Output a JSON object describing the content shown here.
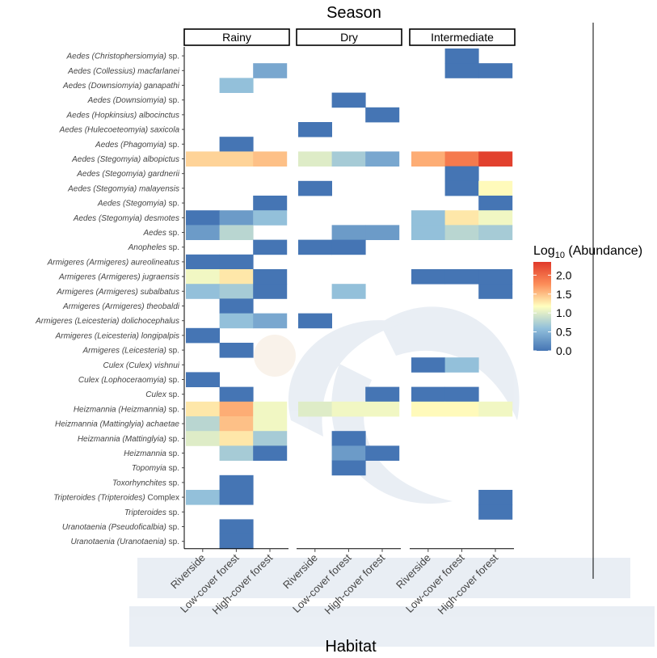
{
  "chart_data": {
    "type": "heatmap",
    "title": "Season",
    "xlabel": "Habitat",
    "legend": {
      "title_main": "Log",
      "title_sub": "10",
      "title_rest": " (Abundance)",
      "ticks": [
        "0.0",
        "0.5",
        "1.0",
        "1.5",
        "2.0"
      ],
      "tick_values": [
        0,
        0.5,
        1.0,
        1.5,
        2.0
      ],
      "range": [
        0,
        2.35
      ],
      "placement": "right",
      "color_stops": [
        "#4575b4",
        "#91bfdb",
        "#ffffbf",
        "#fc8d59",
        "#e03a2a"
      ]
    },
    "facets": [
      "Rainy",
      "Dry",
      "Intermediate"
    ],
    "habitats": [
      "Riverside",
      "Low-cover forest",
      "High-cover forest"
    ],
    "species": [
      {
        "genus": "Aedes",
        "subgenus": "(Christophersiomyia)",
        "epithet": "sp."
      },
      {
        "genus": "Aedes",
        "subgenus": "(Collessius)",
        "epithet": "macfarlanei"
      },
      {
        "genus": "Aedes",
        "subgenus": "(Downsiomyia)",
        "epithet": "ganapathi"
      },
      {
        "genus": "Aedes",
        "subgenus": "(Downsiomyia)",
        "epithet": "sp."
      },
      {
        "genus": "Aedes",
        "subgenus": "(Hopkinsius)",
        "epithet": "albocinctus"
      },
      {
        "genus": "Aedes",
        "subgenus": "(Hulecoeteomyia)",
        "epithet": "saxicola"
      },
      {
        "genus": "Aedes",
        "subgenus": "(Phagomyia)",
        "epithet": "sp."
      },
      {
        "genus": "Aedes",
        "subgenus": "(Stegomyia)",
        "epithet": "albopictus"
      },
      {
        "genus": "Aedes",
        "subgenus": "(Stegomyia)",
        "epithet": "gardnerii"
      },
      {
        "genus": "Aedes",
        "subgenus": "(Stegomyia)",
        "epithet": "malayensis"
      },
      {
        "genus": "Aedes",
        "subgenus": "(Stegomyia)",
        "epithet": "sp."
      },
      {
        "genus": "Aedes",
        "subgenus": "(Stegomyia)",
        "epithet": "desmotes"
      },
      {
        "genus": "Aedes",
        "subgenus": "",
        "epithet": "sp."
      },
      {
        "genus": "Anopheles",
        "subgenus": "",
        "epithet": "sp."
      },
      {
        "genus": "Armigeres",
        "subgenus": "(Armigeres)",
        "epithet": "aureolineatus"
      },
      {
        "genus": "Armigeres",
        "subgenus": "(Armigeres)",
        "epithet": "jugraensis"
      },
      {
        "genus": "Armigeres",
        "subgenus": "(Armigeres)",
        "epithet": "subalbatus"
      },
      {
        "genus": "Armigeres",
        "subgenus": "(Armigeres)",
        "epithet": "theobaldi"
      },
      {
        "genus": "Armigeres",
        "subgenus": "(Leicesteria)",
        "epithet": "dolichocephalus"
      },
      {
        "genus": "Armigeres",
        "subgenus": "(Leicesteria)",
        "epithet": "longipalpis"
      },
      {
        "genus": "Armigeres",
        "subgenus": "(Leicesteria)",
        "epithet": "sp."
      },
      {
        "genus": "Culex",
        "subgenus": "(Culex)",
        "epithet": "vishnui"
      },
      {
        "genus": "Culex",
        "subgenus": "(Lophoceraomyia)",
        "epithet": "sp."
      },
      {
        "genus": "Culex",
        "subgenus": "",
        "epithet": "sp."
      },
      {
        "genus": "Heizmannia",
        "subgenus": "(Heizmannia)",
        "epithet": "sp."
      },
      {
        "genus": "Heizmannia",
        "subgenus": "(Mattinglyia)",
        "epithet": "achaetae"
      },
      {
        "genus": "Heizmannia",
        "subgenus": "(Mattinglyia)",
        "epithet": "sp."
      },
      {
        "genus": "Heizmannia",
        "subgenus": "",
        "epithet": "sp."
      },
      {
        "genus": "Topomyia",
        "subgenus": "",
        "epithet": "sp."
      },
      {
        "genus": "Toxorhynchites",
        "subgenus": "",
        "epithet": "sp."
      },
      {
        "genus": "Tripteroides",
        "subgenus": "(Tripteroides)",
        "epithet": "Complex"
      },
      {
        "genus": "Tripteroides",
        "subgenus": "",
        "epithet": "sp."
      },
      {
        "genus": "Uranotaenia",
        "subgenus": "(Pseudoficalbia)",
        "epithet": "sp."
      },
      {
        "genus": "Uranotaenia",
        "subgenus": "(Uranotaenia)",
        "epithet": "sp."
      }
    ],
    "values": {
      "Rainy": [
        [
          null,
          null,
          null
        ],
        [
          null,
          null,
          0.4
        ],
        [
          null,
          0.6,
          null
        ],
        [
          null,
          null,
          null
        ],
        [
          null,
          null,
          null
        ],
        [
          null,
          null,
          null
        ],
        [
          null,
          0.0,
          null
        ],
        [
          1.4,
          1.4,
          1.5
        ],
        [
          null,
          null,
          null
        ],
        [
          null,
          null,
          null
        ],
        [
          null,
          null,
          0.0
        ],
        [
          0.0,
          0.3,
          0.6
        ],
        [
          0.3,
          0.8,
          null
        ],
        [
          null,
          null,
          0.0
        ],
        [
          0.0,
          0.0,
          null
        ],
        [
          1.1,
          1.3,
          0.0
        ],
        [
          0.6,
          0.7,
          0.0
        ],
        [
          null,
          0.0,
          null
        ],
        [
          null,
          0.6,
          0.4
        ],
        [
          0.0,
          null,
          null
        ],
        [
          null,
          0.0,
          null
        ],
        [
          null,
          null,
          null
        ],
        [
          0.0,
          null,
          null
        ],
        [
          null,
          0.0,
          null
        ],
        [
          1.3,
          1.6,
          1.1
        ],
        [
          0.8,
          1.5,
          1.1
        ],
        [
          1.0,
          1.3,
          0.7
        ],
        [
          null,
          0.7,
          0.0
        ],
        [
          null,
          null,
          null
        ],
        [
          null,
          0.0,
          null
        ],
        [
          0.6,
          0.0,
          null
        ],
        [
          null,
          null,
          null
        ],
        [
          null,
          0.0,
          null
        ],
        [
          null,
          0.0,
          null
        ]
      ],
      "Dry": [
        [
          null,
          null,
          null
        ],
        [
          null,
          null,
          null
        ],
        [
          null,
          null,
          null
        ],
        [
          null,
          0.0,
          null
        ],
        [
          null,
          null,
          0.0
        ],
        [
          0.0,
          null,
          null
        ],
        [
          null,
          null,
          null
        ],
        [
          1.0,
          0.7,
          0.4
        ],
        [
          null,
          null,
          null
        ],
        [
          0.0,
          null,
          null
        ],
        [
          null,
          null,
          null
        ],
        [
          null,
          null,
          null
        ],
        [
          null,
          0.3,
          0.3
        ],
        [
          0.0,
          0.0,
          null
        ],
        [
          null,
          null,
          null
        ],
        [
          null,
          null,
          null
        ],
        [
          null,
          0.6,
          null
        ],
        [
          null,
          null,
          null
        ],
        [
          0.0,
          null,
          null
        ],
        [
          null,
          null,
          null
        ],
        [
          null,
          null,
          null
        ],
        [
          null,
          null,
          null
        ],
        [
          null,
          null,
          null
        ],
        [
          null,
          null,
          0.0
        ],
        [
          1.0,
          1.1,
          1.1
        ],
        [
          null,
          null,
          null
        ],
        [
          null,
          0.0,
          null
        ],
        [
          null,
          0.3,
          0.0
        ],
        [
          null,
          0.0,
          null
        ],
        [
          null,
          null,
          null
        ],
        [
          null,
          null,
          null
        ],
        [
          null,
          null,
          null
        ],
        [
          null,
          null,
          null
        ],
        [
          null,
          null,
          null
        ]
      ],
      "Intermediate": [
        [
          null,
          0.0,
          null
        ],
        [
          null,
          0.0,
          0.0
        ],
        [
          null,
          null,
          null
        ],
        [
          null,
          null,
          null
        ],
        [
          null,
          null,
          null
        ],
        [
          null,
          null,
          null
        ],
        [
          null,
          null,
          null
        ],
        [
          1.6,
          1.9,
          2.3
        ],
        [
          null,
          0.0,
          null
        ],
        [
          null,
          0.0,
          1.2
        ],
        [
          null,
          null,
          0.0
        ],
        [
          0.6,
          1.3,
          1.1
        ],
        [
          0.6,
          0.8,
          0.7
        ],
        [
          null,
          null,
          null
        ],
        [
          null,
          null,
          null
        ],
        [
          0.0,
          0.0,
          0.0
        ],
        [
          null,
          null,
          0.0
        ],
        [
          null,
          null,
          null
        ],
        [
          null,
          null,
          null
        ],
        [
          null,
          null,
          null
        ],
        [
          null,
          null,
          null
        ],
        [
          0.0,
          0.6,
          null
        ],
        [
          null,
          null,
          null
        ],
        [
          0.0,
          0.0,
          null
        ],
        [
          1.2,
          1.2,
          1.1
        ],
        [
          null,
          null,
          null
        ],
        [
          null,
          null,
          null
        ],
        [
          null,
          null,
          null
        ],
        [
          null,
          null,
          null
        ],
        [
          null,
          null,
          null
        ],
        [
          null,
          null,
          0.0
        ],
        [
          null,
          null,
          0.0
        ],
        [
          null,
          null,
          null
        ],
        [
          null,
          null,
          null
        ]
      ]
    }
  }
}
